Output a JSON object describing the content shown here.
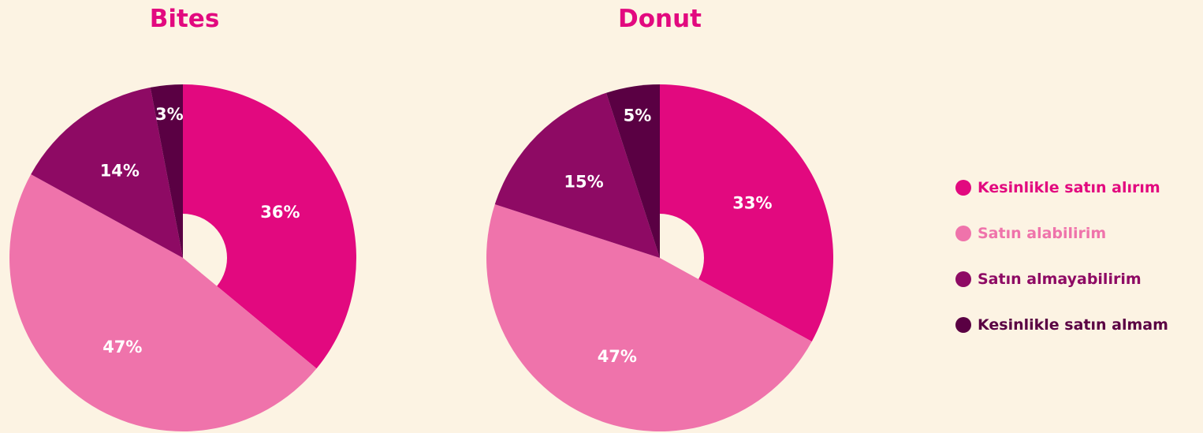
{
  "colors": {
    "background": "#fcf3e3",
    "title": "#e2097f",
    "kesinlikle_alirim": "#e2097f",
    "alabilirim": "#ef73ab",
    "almayabilirim": "#8e0a64",
    "kesinlikle_almam": "#5a0043"
  },
  "chart_data": [
    {
      "type": "pie",
      "title": "Bites",
      "categories": [
        "Kesinlikle satın alırım",
        "Satın alabilirim",
        "Satın almayabilirim",
        "Kesinlikle satın almam"
      ],
      "values": [
        36,
        47,
        14,
        3
      ],
      "labels": [
        "36%",
        "47%",
        "14%",
        "3%"
      ],
      "colors": [
        "#e2097f",
        "#ef73ab",
        "#8e0a64",
        "#5a0043"
      ],
      "donut": true,
      "legend_position": "right"
    },
    {
      "type": "pie",
      "title": "Donut",
      "categories": [
        "Kesinlikle satın alırım",
        "Satın alabilirim",
        "Satın almayabilirim",
        "Kesinlikle satın almam"
      ],
      "values": [
        33,
        47,
        15,
        5
      ],
      "labels": [
        "33%",
        "47%",
        "15%",
        "5%"
      ],
      "colors": [
        "#e2097f",
        "#ef73ab",
        "#8e0a64",
        "#5a0043"
      ],
      "donut": true,
      "legend_position": "right"
    }
  ],
  "legend": {
    "items": [
      {
        "label": "Kesinlikle satın alırım",
        "color": "#e2097f"
      },
      {
        "label": "Satın alabilirim",
        "color": "#ef73ab"
      },
      {
        "label": "Satın almayabilirim",
        "color": "#8e0a64"
      },
      {
        "label": "Kesinlikle satın almam",
        "color": "#5a0043"
      }
    ]
  }
}
